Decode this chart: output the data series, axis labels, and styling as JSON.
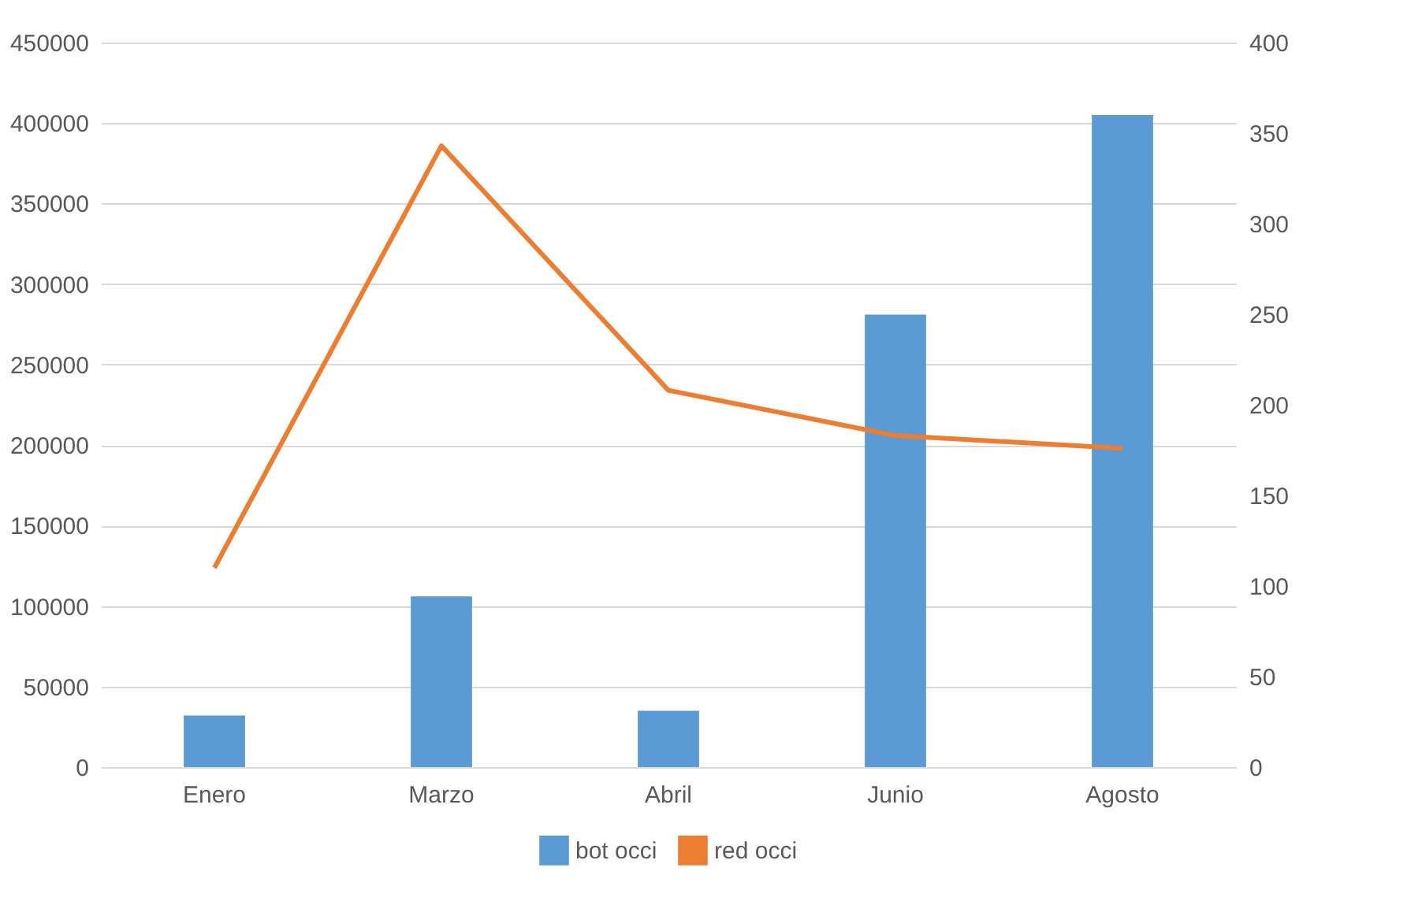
{
  "chart_data": {
    "type": "bar",
    "categories": [
      "Enero",
      "Marzo",
      "Abril",
      "Junio",
      "Agosto"
    ],
    "series": [
      {
        "name": "bot occi",
        "color": "#5b9bd5",
        "values": [
          32000,
          106000,
          35000,
          281000,
          405000
        ]
      },
      {
        "name": "red occi",
        "type": "line",
        "axis": "y2",
        "color": "#ed7d31",
        "values": [
          110,
          343,
          208,
          183,
          176
        ]
      }
    ],
    "ylim": [
      0,
      450000
    ],
    "yticks": [
      0,
      50000,
      100000,
      150000,
      200000,
      250000,
      300000,
      350000,
      400000,
      450000
    ],
    "y2lim": [
      0,
      400
    ],
    "y2ticks": [
      0,
      50,
      100,
      150,
      200,
      250,
      300,
      350,
      400
    ],
    "grid": "y",
    "legend": "bottom",
    "marker": "none"
  }
}
